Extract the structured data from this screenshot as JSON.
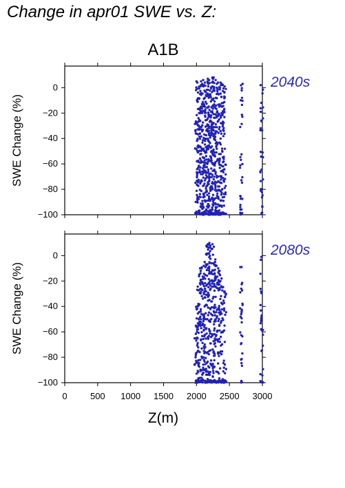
{
  "figure_title": "Change in apr01 SWE vs. Z:",
  "scenario": "A1B",
  "xlabel": "Z(m)",
  "colors": {
    "points": "#2222b4",
    "label": "#2a2ab8",
    "axis": "#000000"
  },
  "chart_data": [
    {
      "type": "scatter",
      "period": "2040s",
      "ylabel": "SWE Change (%)",
      "xlim": [
        0,
        3000
      ],
      "ylim": [
        -100,
        17
      ],
      "xticks": [
        0,
        500,
        1000,
        1500,
        2000,
        2500,
        3000
      ],
      "yticks": [
        0,
        -20,
        -40,
        -60,
        -80,
        -100
      ],
      "columns": [
        {
          "x": 1990,
          "ymin": -100,
          "ymax": -10,
          "n": 14
        },
        {
          "x": 2010,
          "ymin": -100,
          "ymax": 5,
          "n": 40
        },
        {
          "x": 2030,
          "ymin": -100,
          "ymax": 4,
          "n": 34
        },
        {
          "x": 2050,
          "ymin": -100,
          "ymax": 2,
          "n": 36
        },
        {
          "x": 2070,
          "ymin": -100,
          "ymax": 5,
          "n": 30
        },
        {
          "x": 2090,
          "ymin": -100,
          "ymax": 3,
          "n": 38
        },
        {
          "x": 2110,
          "ymin": -100,
          "ymax": 6,
          "n": 34
        },
        {
          "x": 2130,
          "ymin": -100,
          "ymax": 4,
          "n": 36
        },
        {
          "x": 2150,
          "ymin": -100,
          "ymax": 5,
          "n": 40
        },
        {
          "x": 2170,
          "ymin": -100,
          "ymax": 3,
          "n": 34
        },
        {
          "x": 2190,
          "ymin": -100,
          "ymax": 7,
          "n": 42
        },
        {
          "x": 2210,
          "ymin": -100,
          "ymax": 6,
          "n": 38
        },
        {
          "x": 2230,
          "ymin": -100,
          "ymax": 8,
          "n": 44
        },
        {
          "x": 2250,
          "ymin": -100,
          "ymax": 7,
          "n": 40
        },
        {
          "x": 2270,
          "ymin": -100,
          "ymax": 8,
          "n": 40
        },
        {
          "x": 2290,
          "ymin": -100,
          "ymax": 6,
          "n": 36
        },
        {
          "x": 2310,
          "ymin": -100,
          "ymax": 4,
          "n": 30
        },
        {
          "x": 2330,
          "ymin": -100,
          "ymax": 3,
          "n": 30
        },
        {
          "x": 2350,
          "ymin": -100,
          "ymax": 2,
          "n": 28
        },
        {
          "x": 2370,
          "ymin": -100,
          "ymax": 4,
          "n": 30
        },
        {
          "x": 2390,
          "ymin": -100,
          "ymax": 3,
          "n": 28
        },
        {
          "x": 2410,
          "ymin": -100,
          "ymax": 2,
          "n": 30
        },
        {
          "x": 2430,
          "ymin": -100,
          "ymax": 1,
          "n": 26
        },
        {
          "x": 2680,
          "ymin": -100,
          "ymax": 3,
          "n": 34
        },
        {
          "x": 2990,
          "ymin": -100,
          "ymax": 2,
          "n": 32
        }
      ]
    },
    {
      "type": "scatter",
      "period": "2080s",
      "ylabel": "SWE Change (%)",
      "xlim": [
        0,
        3000
      ],
      "ylim": [
        -100,
        17
      ],
      "xticks": [
        0,
        500,
        1000,
        1500,
        2000,
        2500,
        3000
      ],
      "yticks": [
        0,
        -20,
        -40,
        -60,
        -80,
        -100
      ],
      "columns": [
        {
          "x": 1990,
          "ymin": -100,
          "ymax": -60,
          "n": 10
        },
        {
          "x": 2010,
          "ymin": -100,
          "ymax": -38,
          "n": 28
        },
        {
          "x": 2030,
          "ymin": -100,
          "ymax": -15,
          "n": 26
        },
        {
          "x": 2050,
          "ymin": -100,
          "ymax": -12,
          "n": 28
        },
        {
          "x": 2070,
          "ymin": -100,
          "ymax": -10,
          "n": 24
        },
        {
          "x": 2090,
          "ymin": -100,
          "ymax": -8,
          "n": 26
        },
        {
          "x": 2110,
          "ymin": -100,
          "ymax": -24,
          "n": 24
        },
        {
          "x": 2130,
          "ymin": -100,
          "ymax": -5,
          "n": 28
        },
        {
          "x": 2150,
          "ymin": -100,
          "ymax": 8,
          "n": 30
        },
        {
          "x": 2170,
          "ymin": -100,
          "ymax": 8,
          "n": 30
        },
        {
          "x": 2190,
          "ymin": -100,
          "ymax": 9,
          "n": 32
        },
        {
          "x": 2210,
          "ymin": -100,
          "ymax": 10,
          "n": 30
        },
        {
          "x": 2230,
          "ymin": -100,
          "ymax": 9,
          "n": 32
        },
        {
          "x": 2250,
          "ymin": -100,
          "ymax": 7,
          "n": 28
        },
        {
          "x": 2270,
          "ymin": -100,
          "ymax": -3,
          "n": 26
        },
        {
          "x": 2290,
          "ymin": -100,
          "ymax": -5,
          "n": 24
        },
        {
          "x": 2310,
          "ymin": -100,
          "ymax": -8,
          "n": 22
        },
        {
          "x": 2330,
          "ymin": -100,
          "ymax": -10,
          "n": 22
        },
        {
          "x": 2350,
          "ymin": -100,
          "ymax": -12,
          "n": 20
        },
        {
          "x": 2370,
          "ymin": -100,
          "ymax": -20,
          "n": 20
        },
        {
          "x": 2390,
          "ymin": -100,
          "ymax": -18,
          "n": 18
        },
        {
          "x": 2410,
          "ymin": -100,
          "ymax": -25,
          "n": 18
        },
        {
          "x": 2430,
          "ymin": -100,
          "ymax": -30,
          "n": 16
        },
        {
          "x": 2680,
          "ymin": -100,
          "ymax": -9,
          "n": 30
        },
        {
          "x": 2990,
          "ymin": -100,
          "ymax": -1,
          "n": 30
        }
      ]
    }
  ]
}
